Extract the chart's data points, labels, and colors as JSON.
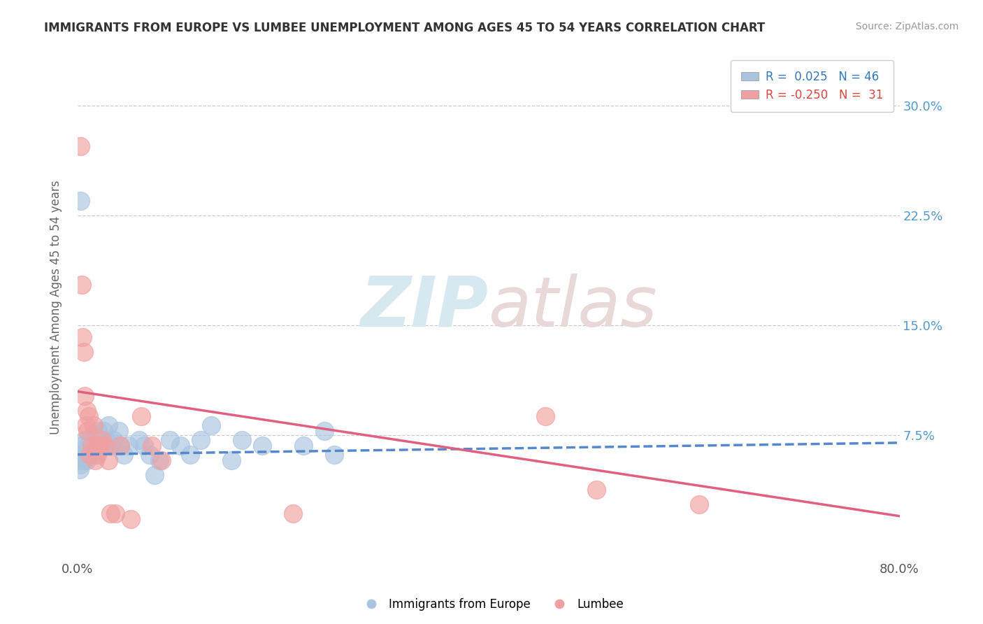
{
  "title": "IMMIGRANTS FROM EUROPE VS LUMBEE UNEMPLOYMENT AMONG AGES 45 TO 54 YEARS CORRELATION CHART",
  "source": "Source: ZipAtlas.com",
  "ylabel": "Unemployment Among Ages 45 to 54 years",
  "xlim": [
    0.0,
    0.8
  ],
  "ylim": [
    -0.01,
    0.335
  ],
  "yticks": [
    0.075,
    0.15,
    0.225,
    0.3
  ],
  "ytick_labels": [
    "7.5%",
    "15.0%",
    "22.5%",
    "30.0%"
  ],
  "xticks": [
    0.0,
    0.8
  ],
  "xtick_labels": [
    "0.0%",
    "80.0%"
  ],
  "grid_color": "#cccccc",
  "background_color": "#ffffff",
  "watermark_zip": "ZIP",
  "watermark_atlas": "atlas",
  "legend_R_blue": " 0.025",
  "legend_N_blue": "46",
  "legend_R_pink": "-0.250",
  "legend_N_pink": " 31",
  "blue_color": "#aac4e0",
  "pink_color": "#f0a0a0",
  "blue_line_color": "#5588cc",
  "pink_line_color": "#e06080",
  "scatter_blue": [
    [
      0.001,
      0.062
    ],
    [
      0.002,
      0.058
    ],
    [
      0.003,
      0.055
    ],
    [
      0.004,
      0.068
    ],
    [
      0.005,
      0.06
    ],
    [
      0.006,
      0.058
    ],
    [
      0.007,
      0.072
    ],
    [
      0.008,
      0.062
    ],
    [
      0.009,
      0.058
    ],
    [
      0.01,
      0.065
    ],
    [
      0.012,
      0.07
    ],
    [
      0.013,
      0.062
    ],
    [
      0.015,
      0.075
    ],
    [
      0.016,
      0.068
    ],
    [
      0.017,
      0.072
    ],
    [
      0.018,
      0.062
    ],
    [
      0.02,
      0.078
    ],
    [
      0.022,
      0.068
    ],
    [
      0.025,
      0.078
    ],
    [
      0.026,
      0.068
    ],
    [
      0.028,
      0.072
    ],
    [
      0.03,
      0.082
    ],
    [
      0.032,
      0.068
    ],
    [
      0.035,
      0.072
    ],
    [
      0.04,
      0.078
    ],
    [
      0.042,
      0.068
    ],
    [
      0.045,
      0.062
    ],
    [
      0.05,
      0.068
    ],
    [
      0.06,
      0.072
    ],
    [
      0.065,
      0.068
    ],
    [
      0.07,
      0.062
    ],
    [
      0.075,
      0.048
    ],
    [
      0.08,
      0.058
    ],
    [
      0.09,
      0.072
    ],
    [
      0.1,
      0.068
    ],
    [
      0.11,
      0.062
    ],
    [
      0.12,
      0.072
    ],
    [
      0.13,
      0.082
    ],
    [
      0.15,
      0.058
    ],
    [
      0.16,
      0.072
    ],
    [
      0.18,
      0.068
    ],
    [
      0.22,
      0.068
    ],
    [
      0.24,
      0.078
    ],
    [
      0.25,
      0.062
    ],
    [
      0.003,
      0.235
    ],
    [
      0.002,
      0.052
    ]
  ],
  "scatter_pink": [
    [
      0.003,
      0.272
    ],
    [
      0.004,
      0.178
    ],
    [
      0.005,
      0.142
    ],
    [
      0.006,
      0.132
    ],
    [
      0.007,
      0.102
    ],
    [
      0.008,
      0.082
    ],
    [
      0.009,
      0.092
    ],
    [
      0.01,
      0.078
    ],
    [
      0.011,
      0.088
    ],
    [
      0.012,
      0.062
    ],
    [
      0.014,
      0.068
    ],
    [
      0.016,
      0.082
    ],
    [
      0.017,
      0.058
    ],
    [
      0.018,
      0.068
    ],
    [
      0.019,
      0.062
    ],
    [
      0.02,
      0.068
    ],
    [
      0.022,
      0.068
    ],
    [
      0.024,
      0.072
    ],
    [
      0.027,
      0.068
    ],
    [
      0.03,
      0.058
    ],
    [
      0.032,
      0.022
    ],
    [
      0.037,
      0.022
    ],
    [
      0.042,
      0.068
    ],
    [
      0.052,
      0.018
    ],
    [
      0.062,
      0.088
    ],
    [
      0.072,
      0.068
    ],
    [
      0.082,
      0.058
    ],
    [
      0.21,
      0.022
    ],
    [
      0.455,
      0.088
    ],
    [
      0.505,
      0.038
    ],
    [
      0.605,
      0.028
    ]
  ],
  "blue_trendline": [
    [
      0.0,
      0.062
    ],
    [
      0.8,
      0.07
    ]
  ],
  "pink_trendline": [
    [
      0.0,
      0.105
    ],
    [
      0.8,
      0.02
    ]
  ]
}
